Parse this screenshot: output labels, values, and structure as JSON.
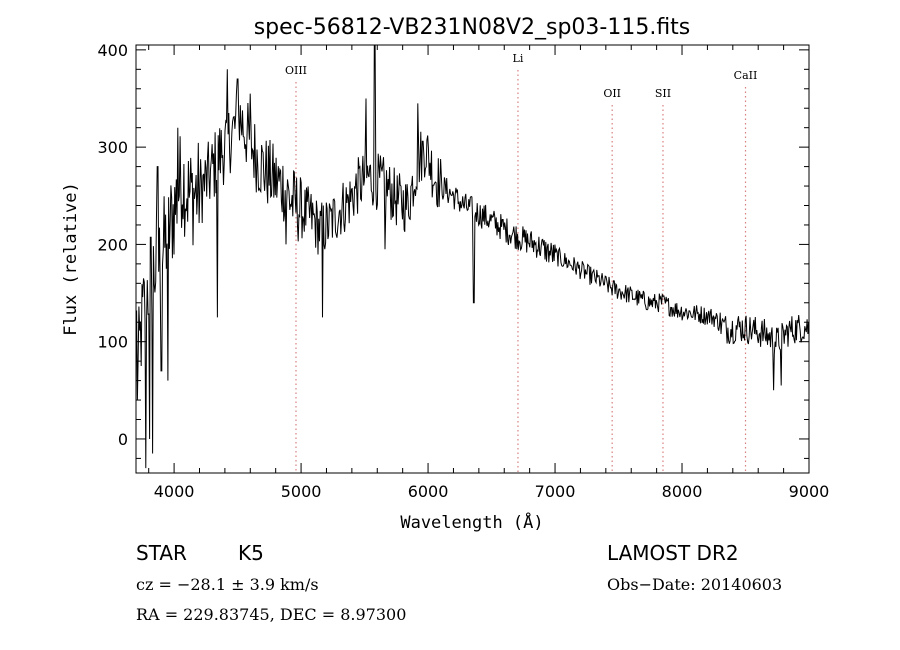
{
  "chart_data": {
    "type": "line",
    "title": "spec-56812-VB231N08V2_sp03-115.fits",
    "xlabel": "Wavelength (Å)",
    "ylabel": "Flux (relative)",
    "xlim": [
      3700,
      9000
    ],
    "ylim": [
      -35,
      405
    ],
    "x_ticks": [
      "4000",
      "5000",
      "6000",
      "7000",
      "8000",
      "9000"
    ],
    "y_ticks": [
      "0",
      "100",
      "200",
      "300",
      "400"
    ],
    "grid": false,
    "line_color": "#000000",
    "marker_color": "#d98080",
    "spectral_lines": [
      {
        "label": "OIII",
        "x": 4960
      },
      {
        "label": "Li",
        "x": 6708
      },
      {
        "label": "OII",
        "x": 7450
      },
      {
        "label": "SII",
        "x": 7850
      },
      {
        "label": "CaII",
        "x": 8500
      }
    ],
    "anchors": [
      [
        3710,
        60
      ],
      [
        3740,
        110
      ],
      [
        3780,
        150
      ],
      [
        3820,
        170
      ],
      [
        3880,
        180
      ],
      [
        3950,
        210
      ],
      [
        4000,
        235
      ],
      [
        4060,
        270
      ],
      [
        4120,
        250
      ],
      [
        4200,
        255
      ],
      [
        4280,
        270
      ],
      [
        4350,
        290
      ],
      [
        4420,
        305
      ],
      [
        4480,
        320
      ],
      [
        4520,
        330
      ],
      [
        4580,
        310
      ],
      [
        4650,
        290
      ],
      [
        4720,
        275
      ],
      [
        4800,
        265
      ],
      [
        4860,
        260
      ],
      [
        4920,
        245
      ],
      [
        5000,
        235
      ],
      [
        5080,
        228
      ],
      [
        5150,
        215
      ],
      [
        5220,
        220
      ],
      [
        5300,
        235
      ],
      [
        5380,
        245
      ],
      [
        5450,
        260
      ],
      [
        5520,
        270
      ],
      [
        5600,
        265
      ],
      [
        5680,
        258
      ],
      [
        5760,
        245
      ],
      [
        5840,
        240
      ],
      [
        5920,
        285
      ],
      [
        5980,
        300
      ],
      [
        6050,
        270
      ],
      [
        6120,
        258
      ],
      [
        6200,
        250
      ],
      [
        6280,
        240
      ],
      [
        6360,
        235
      ],
      [
        6450,
        228
      ],
      [
        6550,
        220
      ],
      [
        6650,
        212
      ],
      [
        6750,
        205
      ],
      [
        6850,
        200
      ],
      [
        6950,
        192
      ],
      [
        7050,
        185
      ],
      [
        7150,
        178
      ],
      [
        7250,
        170
      ],
      [
        7350,
        163
      ],
      [
        7450,
        155
      ],
      [
        7550,
        150
      ],
      [
        7650,
        145
      ],
      [
        7750,
        140
      ],
      [
        7850,
        140
      ],
      [
        7950,
        133
      ],
      [
        8050,
        130
      ],
      [
        8150,
        128
      ],
      [
        8250,
        125
      ],
      [
        8350,
        113
      ],
      [
        8450,
        115
      ],
      [
        8550,
        112
      ],
      [
        8650,
        108
      ],
      [
        8750,
        100
      ],
      [
        8850,
        112
      ],
      [
        8950,
        115
      ],
      [
        9000,
        115
      ]
    ],
    "spikes": [
      [
        3775,
        -30
      ],
      [
        3805,
        0
      ],
      [
        3830,
        -15
      ],
      [
        3870,
        280
      ],
      [
        3900,
        70
      ],
      [
        3950,
        60
      ],
      [
        4030,
        320
      ],
      [
        4340,
        125
      ],
      [
        4420,
        380
      ],
      [
        4500,
        370
      ],
      [
        4600,
        355
      ],
      [
        4880,
        200
      ],
      [
        5170,
        125
      ],
      [
        5510,
        350
      ],
      [
        5580,
        405
      ],
      [
        5660,
        195
      ],
      [
        5920,
        345
      ],
      [
        6360,
        140
      ],
      [
        8720,
        50
      ],
      [
        8780,
        55
      ]
    ]
  },
  "info": {
    "object_type": "STAR",
    "subclass": "K5",
    "survey": "LAMOST DR2",
    "redshift": "cz = −28.1 ± 3.9 km/s",
    "obs_date": "Obs−Date: 20140603",
    "coords": "RA = 229.83745, DEC =   8.97300"
  }
}
